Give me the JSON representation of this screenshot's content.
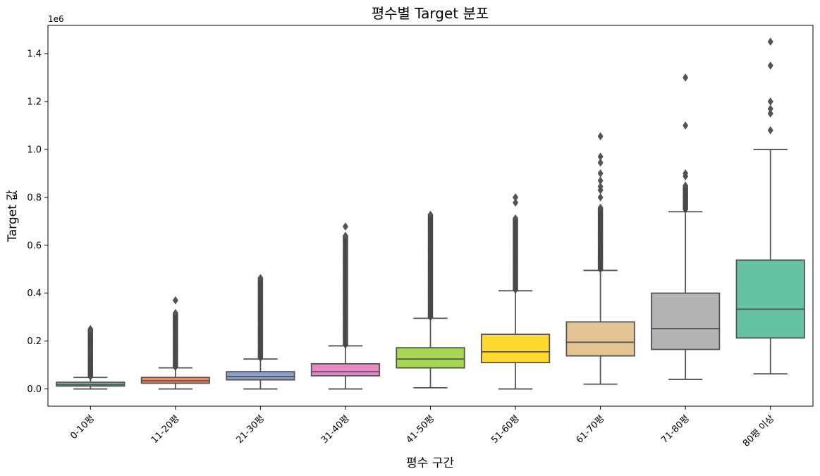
{
  "chart_data": {
    "type": "box",
    "title": "평수별 Target 분포",
    "xlabel": "평수 구간",
    "ylabel": "Target 값",
    "y_offset_label": "1e6",
    "ylim": [
      -0.072,
      1.518
    ],
    "yticks": [
      0.0,
      0.2,
      0.4,
      0.6,
      0.8,
      1.0,
      1.2,
      1.4
    ],
    "ytick_labels": [
      "0.0",
      "0.2",
      "0.4",
      "0.6",
      "0.8",
      "1.0",
      "1.2",
      "1.4"
    ],
    "grid": false,
    "categories": [
      "0-10평",
      "11-20평",
      "21-30평",
      "31-40평",
      "41-50평",
      "51-60평",
      "61-70평",
      "71-80평",
      "80평 이상"
    ],
    "boxes": [
      {
        "category": "0-10평",
        "color": "#66c2a5",
        "whisker_low": 0.0,
        "q1": 0.012,
        "median": 0.018,
        "q3": 0.028,
        "whisker_high": 0.048,
        "flier_min": 0.052,
        "flier_max": 0.25,
        "extra_fliers": [
          0.243
        ]
      },
      {
        "category": "11-20평",
        "color": "#fc8d62",
        "whisker_low": 0.0,
        "q1": 0.024,
        "median": 0.034,
        "q3": 0.048,
        "whisker_high": 0.088,
        "flier_min": 0.092,
        "flier_max": 0.318,
        "extra_fliers": [
          0.37
        ]
      },
      {
        "category": "21-30평",
        "color": "#8da0cb",
        "whisker_low": 0.0,
        "q1": 0.038,
        "median": 0.052,
        "q3": 0.072,
        "whisker_high": 0.125,
        "flier_min": 0.13,
        "flier_max": 0.465,
        "extra_fliers": []
      },
      {
        "category": "31-40평",
        "color": "#e78ac3",
        "whisker_low": 0.0,
        "q1": 0.055,
        "median": 0.072,
        "q3": 0.105,
        "whisker_high": 0.18,
        "flier_min": 0.185,
        "flier_max": 0.64,
        "extra_fliers": [
          0.678
        ]
      },
      {
        "category": "41-50평",
        "color": "#a6d854",
        "whisker_low": 0.005,
        "q1": 0.088,
        "median": 0.125,
        "q3": 0.172,
        "whisker_high": 0.295,
        "flier_min": 0.3,
        "flier_max": 0.728,
        "extra_fliers": []
      },
      {
        "category": "51-60평",
        "color": "#ffd92f",
        "whisker_low": 0.0,
        "q1": 0.11,
        "median": 0.155,
        "q3": 0.228,
        "whisker_high": 0.41,
        "flier_min": 0.415,
        "flier_max": 0.715,
        "extra_fliers": [
          0.778,
          0.8
        ]
      },
      {
        "category": "61-70평",
        "color": "#e5c494",
        "whisker_low": 0.02,
        "q1": 0.138,
        "median": 0.195,
        "q3": 0.28,
        "whisker_high": 0.495,
        "flier_min": 0.5,
        "flier_max": 0.76,
        "extra_fliers": [
          0.8,
          0.83,
          0.845,
          0.87,
          0.9,
          0.945,
          0.97,
          1.055
        ]
      },
      {
        "category": "71-80평",
        "color": "#b3b3b3",
        "whisker_low": 0.04,
        "q1": 0.165,
        "median": 0.252,
        "q3": 0.4,
        "whisker_high": 0.74,
        "flier_min": 0.75,
        "flier_max": 0.85,
        "extra_fliers": [
          0.888,
          0.9,
          1.1,
          1.3
        ]
      },
      {
        "category": "80평 이상",
        "color": "#66c2a5",
        "whisker_low": 0.063,
        "q1": 0.213,
        "median": 0.333,
        "q3": 0.538,
        "whisker_high": 1.0,
        "flier_min": null,
        "flier_max": null,
        "extra_fliers": [
          1.08,
          1.15,
          1.17,
          1.2,
          1.35,
          1.45
        ]
      }
    ]
  }
}
